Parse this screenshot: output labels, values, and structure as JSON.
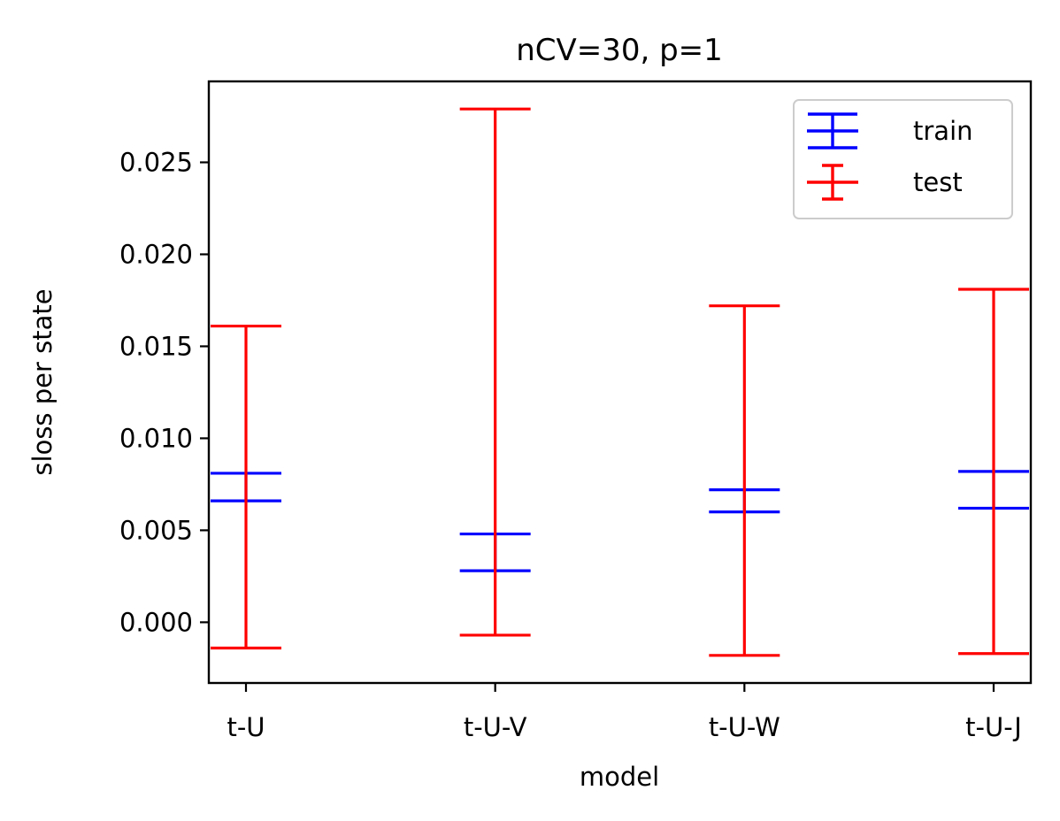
{
  "chart_data": {
    "type": "errorbar",
    "title": "nCV=30, p=1",
    "xlabel": "model",
    "ylabel": "sloss per state",
    "categories": [
      "t-U",
      "t-U-V",
      "t-U-W",
      "t-U-J"
    ],
    "ylim": [
      -0.0033,
      0.0294
    ],
    "yticks": [
      0.0,
      0.005,
      0.01,
      0.015,
      0.02,
      0.025
    ],
    "ytick_labels": [
      "0.000",
      "0.005",
      "0.010",
      "0.015",
      "0.020",
      "0.025"
    ],
    "grid": false,
    "legend_position": "top-right",
    "series": [
      {
        "name": "train",
        "color": "#0000ff",
        "lower": [
          0.0066,
          0.0028,
          0.006,
          0.0062
        ],
        "upper": [
          0.0081,
          0.0048,
          0.0072,
          0.0082
        ]
      },
      {
        "name": "test",
        "color": "#ff0000",
        "lower": [
          -0.0014,
          -0.0007,
          -0.0018,
          -0.0017
        ],
        "upper": [
          0.0161,
          0.0279,
          0.0172,
          0.0181
        ]
      }
    ]
  }
}
